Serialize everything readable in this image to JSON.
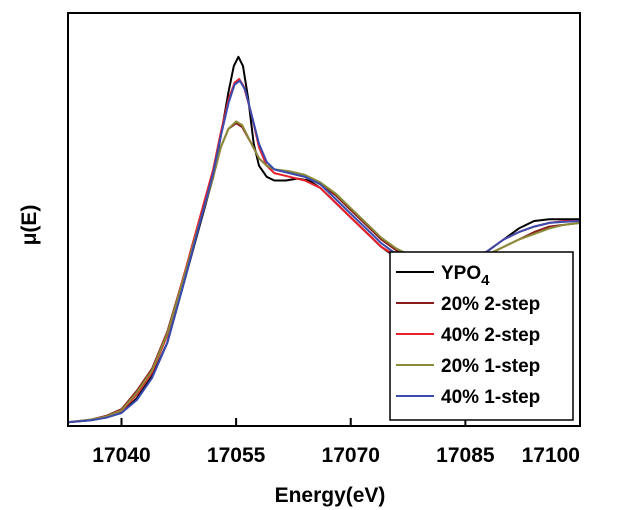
{
  "chart_data": {
    "type": "line",
    "xlabel": "Energy(eV)",
    "ylabel": "μ(E)",
    "xlim": [
      17033,
      17100
    ],
    "ylim": [
      0,
      1.0
    ],
    "x_ticks": [
      "17040",
      "17055",
      "17070",
      "17085",
      "17100"
    ],
    "x_tick_values": [
      17040,
      17055,
      17070,
      17085,
      17100
    ],
    "y_ticks_shown": false,
    "grid": false,
    "legend_position": "bottom-right",
    "legend": {
      "ypo_base": "YPO",
      "ypo_sub": "4"
    },
    "series": [
      {
        "name": "YPO4",
        "color": "#000000",
        "points": [
          [
            17033,
            0.005
          ],
          [
            17036,
            0.01
          ],
          [
            17038,
            0.018
          ],
          [
            17040,
            0.03
          ],
          [
            17042,
            0.07
          ],
          [
            17044,
            0.13
          ],
          [
            17046,
            0.22
          ],
          [
            17048,
            0.37
          ],
          [
            17050,
            0.52
          ],
          [
            17052,
            0.67
          ],
          [
            17053,
            0.78
          ],
          [
            17054,
            0.9
          ],
          [
            17054.7,
            0.97
          ],
          [
            17055.3,
            0.995
          ],
          [
            17055.9,
            0.97
          ],
          [
            17056.6,
            0.88
          ],
          [
            17057.3,
            0.76
          ],
          [
            17058,
            0.7
          ],
          [
            17059,
            0.67
          ],
          [
            17060,
            0.66
          ],
          [
            17061.5,
            0.66
          ],
          [
            17063,
            0.665
          ],
          [
            17064.5,
            0.66
          ],
          [
            17066,
            0.64
          ],
          [
            17068,
            0.6
          ],
          [
            17070,
            0.56
          ],
          [
            17072,
            0.52
          ],
          [
            17074,
            0.48
          ],
          [
            17076,
            0.45
          ],
          [
            17078,
            0.43
          ],
          [
            17080,
            0.42
          ],
          [
            17082,
            0.42
          ],
          [
            17084,
            0.43
          ],
          [
            17086,
            0.44
          ],
          [
            17088,
            0.47
          ],
          [
            17090,
            0.5
          ],
          [
            17092,
            0.53
          ],
          [
            17094,
            0.55
          ],
          [
            17096,
            0.555
          ],
          [
            17098,
            0.555
          ],
          [
            17100,
            0.555
          ]
        ]
      },
      {
        "name": "20% 2-step",
        "color": "#8b1a1a",
        "points": [
          [
            17033,
            0.005
          ],
          [
            17036,
            0.012
          ],
          [
            17038,
            0.022
          ],
          [
            17040,
            0.04
          ],
          [
            17042,
            0.09
          ],
          [
            17044,
            0.15
          ],
          [
            17046,
            0.25
          ],
          [
            17048,
            0.39
          ],
          [
            17050,
            0.53
          ],
          [
            17052,
            0.67
          ],
          [
            17053,
            0.75
          ],
          [
            17054,
            0.8
          ],
          [
            17055,
            0.815
          ],
          [
            17055.8,
            0.805
          ],
          [
            17057,
            0.76
          ],
          [
            17058,
            0.72
          ],
          [
            17059,
            0.7
          ],
          [
            17060,
            0.69
          ],
          [
            17062,
            0.68
          ],
          [
            17064,
            0.67
          ],
          [
            17066,
            0.65
          ],
          [
            17068,
            0.62
          ],
          [
            17070,
            0.58
          ],
          [
            17072,
            0.54
          ],
          [
            17074,
            0.5
          ],
          [
            17076,
            0.47
          ],
          [
            17078,
            0.45
          ],
          [
            17080,
            0.44
          ],
          [
            17082,
            0.43
          ],
          [
            17084,
            0.435
          ],
          [
            17086,
            0.445
          ],
          [
            17088,
            0.46
          ],
          [
            17090,
            0.48
          ],
          [
            17092,
            0.5
          ],
          [
            17094,
            0.52
          ],
          [
            17096,
            0.535
          ],
          [
            17098,
            0.54
          ],
          [
            17100,
            0.545
          ]
        ]
      },
      {
        "name": "40% 2-step",
        "color": "#e8202a",
        "points": [
          [
            17033,
            0.005
          ],
          [
            17036,
            0.011
          ],
          [
            17038,
            0.02
          ],
          [
            17040,
            0.035
          ],
          [
            17042,
            0.08
          ],
          [
            17044,
            0.14
          ],
          [
            17046,
            0.24
          ],
          [
            17048,
            0.39
          ],
          [
            17050,
            0.54
          ],
          [
            17052,
            0.69
          ],
          [
            17053,
            0.79
          ],
          [
            17054,
            0.88
          ],
          [
            17054.8,
            0.925
          ],
          [
            17055.4,
            0.935
          ],
          [
            17056,
            0.915
          ],
          [
            17057,
            0.84
          ],
          [
            17058,
            0.75
          ],
          [
            17059,
            0.7
          ],
          [
            17060,
            0.68
          ],
          [
            17062,
            0.67
          ],
          [
            17064,
            0.66
          ],
          [
            17066,
            0.64
          ],
          [
            17068,
            0.6
          ],
          [
            17070,
            0.56
          ],
          [
            17072,
            0.52
          ],
          [
            17074,
            0.48
          ],
          [
            17076,
            0.455
          ],
          [
            17078,
            0.435
          ],
          [
            17080,
            0.425
          ],
          [
            17082,
            0.425
          ],
          [
            17084,
            0.43
          ],
          [
            17086,
            0.445
          ],
          [
            17088,
            0.47
          ],
          [
            17090,
            0.5
          ],
          [
            17092,
            0.52
          ],
          [
            17094,
            0.535
          ],
          [
            17096,
            0.545
          ],
          [
            17098,
            0.55
          ],
          [
            17100,
            0.55
          ]
        ]
      },
      {
        "name": "20% 1-step",
        "color": "#8b8b3a",
        "points": [
          [
            17033,
            0.005
          ],
          [
            17036,
            0.012
          ],
          [
            17038,
            0.02
          ],
          [
            17040,
            0.037
          ],
          [
            17042,
            0.085
          ],
          [
            17044,
            0.145
          ],
          [
            17046,
            0.245
          ],
          [
            17048,
            0.385
          ],
          [
            17050,
            0.53
          ],
          [
            17052,
            0.67
          ],
          [
            17053,
            0.75
          ],
          [
            17054,
            0.8
          ],
          [
            17055,
            0.82
          ],
          [
            17055.8,
            0.81
          ],
          [
            17057,
            0.76
          ],
          [
            17058,
            0.72
          ],
          [
            17059,
            0.7
          ],
          [
            17060,
            0.69
          ],
          [
            17062,
            0.685
          ],
          [
            17064,
            0.675
          ],
          [
            17066,
            0.655
          ],
          [
            17068,
            0.625
          ],
          [
            17070,
            0.585
          ],
          [
            17072,
            0.545
          ],
          [
            17074,
            0.505
          ],
          [
            17076,
            0.475
          ],
          [
            17078,
            0.455
          ],
          [
            17080,
            0.445
          ],
          [
            17082,
            0.44
          ],
          [
            17084,
            0.44
          ],
          [
            17086,
            0.445
          ],
          [
            17088,
            0.46
          ],
          [
            17090,
            0.48
          ],
          [
            17092,
            0.5
          ],
          [
            17094,
            0.515
          ],
          [
            17096,
            0.53
          ],
          [
            17098,
            0.54
          ],
          [
            17100,
            0.545
          ]
        ]
      },
      {
        "name": "40% 1-step",
        "color": "#3a4bb0",
        "points": [
          [
            17033,
            0.005
          ],
          [
            17036,
            0.01
          ],
          [
            17038,
            0.017
          ],
          [
            17040,
            0.03
          ],
          [
            17042,
            0.065
          ],
          [
            17044,
            0.125
          ],
          [
            17046,
            0.22
          ],
          [
            17048,
            0.37
          ],
          [
            17050,
            0.525
          ],
          [
            17052,
            0.68
          ],
          [
            17053,
            0.78
          ],
          [
            17054,
            0.87
          ],
          [
            17054.8,
            0.92
          ],
          [
            17055.5,
            0.93
          ],
          [
            17056.2,
            0.905
          ],
          [
            17057,
            0.84
          ],
          [
            17058,
            0.76
          ],
          [
            17059,
            0.71
          ],
          [
            17060,
            0.69
          ],
          [
            17062,
            0.68
          ],
          [
            17064,
            0.67
          ],
          [
            17066,
            0.65
          ],
          [
            17068,
            0.61
          ],
          [
            17070,
            0.57
          ],
          [
            17072,
            0.53
          ],
          [
            17074,
            0.49
          ],
          [
            17076,
            0.46
          ],
          [
            17078,
            0.44
          ],
          [
            17080,
            0.43
          ],
          [
            17082,
            0.425
          ],
          [
            17084,
            0.43
          ],
          [
            17086,
            0.445
          ],
          [
            17088,
            0.47
          ],
          [
            17090,
            0.5
          ],
          [
            17092,
            0.52
          ],
          [
            17094,
            0.535
          ],
          [
            17096,
            0.545
          ],
          [
            17098,
            0.548
          ],
          [
            17100,
            0.55
          ]
        ]
      }
    ]
  }
}
